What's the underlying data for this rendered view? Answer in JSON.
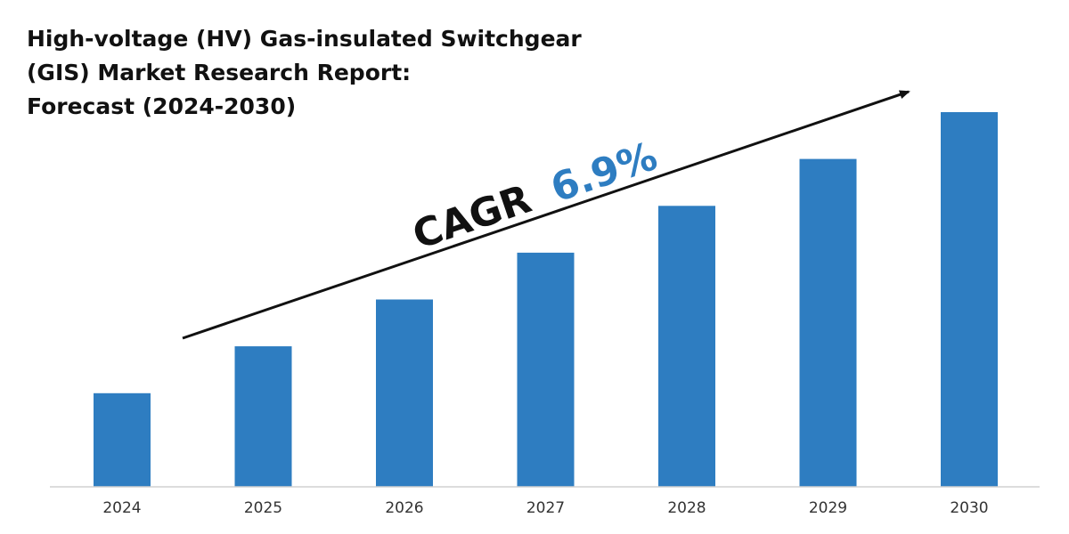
{
  "chart_data": {
    "type": "bar",
    "title_lines": [
      "High-voltage (HV) Gas-insulated Switchgear",
      "(GIS) Market Research Report:",
      "Forecast (2024-2030)"
    ],
    "categories": [
      "2024",
      "2025",
      "2026",
      "2027",
      "2028",
      "2029",
      "2030"
    ],
    "values": [
      1.0,
      1.5,
      2.0,
      2.5,
      3.0,
      3.5,
      4.0
    ],
    "ylim": [
      0,
      4.0
    ],
    "xlabel": "",
    "ylabel": "",
    "grid": false,
    "bar_color": "#2e7dc1",
    "annotation": {
      "label": "CAGR",
      "value": "6.9%",
      "label_color": "#111111",
      "value_color": "#2e7dc1"
    }
  }
}
